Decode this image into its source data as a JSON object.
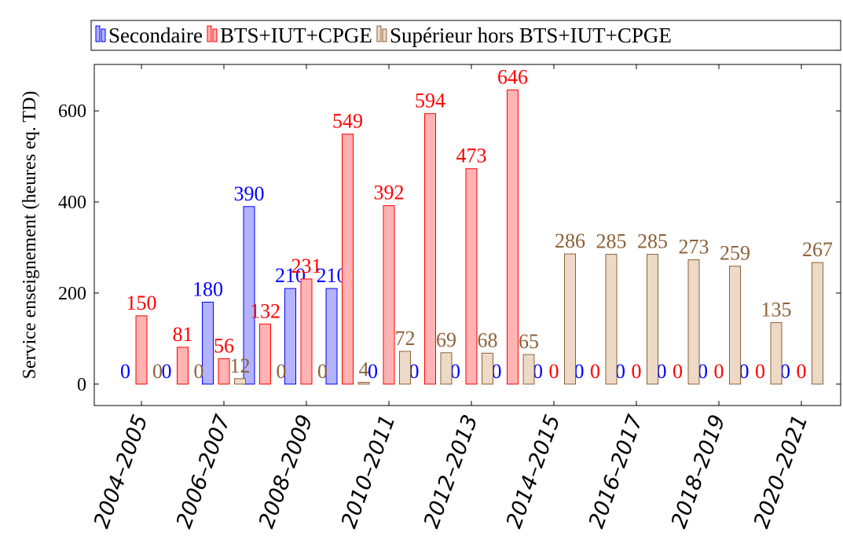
{
  "chart_data": {
    "type": "bar",
    "y_label": "Service enseignement (heures eq. TD)",
    "categories": [
      "2004–2005",
      null,
      "2006–2007",
      null,
      "2008–2009",
      null,
      "2010–2011",
      null,
      "2012–2013",
      null,
      "2014–2015",
      null,
      "2016–2017",
      null,
      "2018–2019",
      null,
      "2020–2021"
    ],
    "series": [
      {
        "name": "Secondaire",
        "color": "#0000ff",
        "fill": "#b3b3ff",
        "values": [
          0,
          0,
          180,
          390,
          210,
          210,
          0,
          0,
          0,
          0,
          0,
          0,
          0,
          0,
          0,
          0,
          0
        ]
      },
      {
        "name": "BTS+IUT+CPGE",
        "color": "#ff0000",
        "fill": "#ffb3b3",
        "values": [
          150,
          81,
          56,
          132,
          231,
          549,
          392,
          594,
          473,
          646,
          0,
          0,
          0,
          0,
          0,
          0,
          0
        ]
      },
      {
        "name": "Supérieur hors BTS+IUT+CPGE",
        "color": "#8c6239",
        "fill": "#ecdac7",
        "values": [
          0,
          0,
          12,
          0,
          0,
          4,
          72,
          69,
          68,
          65,
          286,
          285,
          285,
          273,
          259,
          135,
          267
        ]
      }
    ],
    "ylim": [
      -47,
      702
    ],
    "yticks": [
      0,
      200,
      400,
      600
    ]
  }
}
